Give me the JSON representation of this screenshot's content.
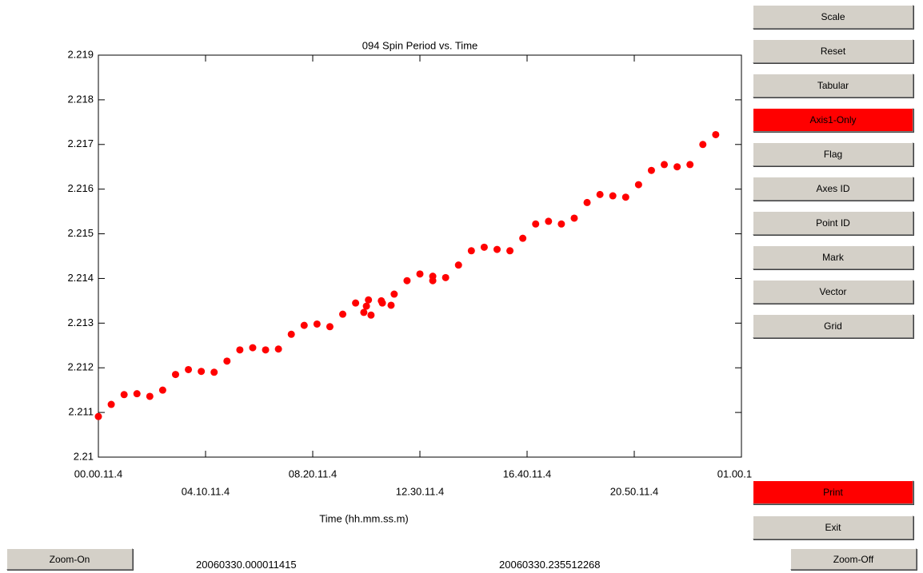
{
  "chart_data": {
    "type": "scatter",
    "title": "094 Spin Period vs. Time",
    "x_label": "Time  (hh.mm.ss.m)",
    "color": "#ff0000",
    "xlim": [
      0,
      25
    ],
    "xticks": [
      {
        "value": 0,
        "label": "00.00.11.4"
      },
      {
        "value": 4.1667,
        "label": "04.10.11.4"
      },
      {
        "value": 8.3333,
        "label": "08.20.11.4"
      },
      {
        "value": 12.5,
        "label": "12.30.11.4"
      },
      {
        "value": 16.6667,
        "label": "16.40.11.4"
      },
      {
        "value": 20.8333,
        "label": "20.50.11.4"
      },
      {
        "value": 25,
        "label": "01.00.11.4"
      }
    ],
    "ylim": [
      2.21,
      2.219
    ],
    "yticks": [
      2.21,
      2.211,
      2.212,
      2.213,
      2.214,
      2.215,
      2.216,
      2.217,
      2.218,
      2.219
    ],
    "x": [
      0,
      0.5,
      1,
      1.5,
      2,
      2.5,
      3,
      3.5,
      4,
      4.5,
      5,
      5.5,
      6,
      6.5,
      7,
      7.5,
      8,
      8.5,
      9,
      9.5,
      10,
      10.32,
      10.42,
      10.5,
      10.6,
      11,
      11.04,
      11.38,
      11.5,
      12,
      12.5,
      13,
      13.0,
      13.5,
      14,
      14.5,
      15,
      15.5,
      16,
      16.5,
      17,
      17.5,
      18,
      18.5,
      19,
      19.5,
      20,
      20.5,
      21,
      21.5,
      22,
      22.5,
      23,
      23.5,
      24
    ],
    "values": [
      2.21091,
      2.21118,
      2.2114,
      2.21142,
      2.21136,
      2.2115,
      2.21185,
      2.21196,
      2.21192,
      2.2119,
      2.21215,
      2.2124,
      2.21245,
      2.2124,
      2.21242,
      2.21275,
      2.21295,
      2.21298,
      2.21292,
      2.2132,
      2.21345,
      2.21324,
      2.21338,
      2.21352,
      2.21318,
      2.2135,
      2.21345,
      2.2134,
      2.21365,
      2.21395,
      2.2141,
      2.21405,
      2.21395,
      2.21402,
      2.2143,
      2.21462,
      2.2147,
      2.21465,
      2.21462,
      2.2149,
      2.21522,
      2.21528,
      2.21522,
      2.21535,
      2.2157,
      2.21588,
      2.21585,
      2.21582,
      2.2161,
      2.21642,
      2.21655,
      2.2165,
      2.21655,
      2.217,
      2.21722
    ]
  },
  "range_start": "20060330.000011415",
  "range_end": "20060330.235512268",
  "buttons": [
    {
      "label": "Scale"
    },
    {
      "label": "Reset"
    },
    {
      "label": "Tabular"
    },
    {
      "label": "Axis1-Only",
      "color": "#ff0000"
    },
    {
      "label": "Flag"
    },
    {
      "label": "Axes ID"
    },
    {
      "label": "Point ID"
    },
    {
      "label": "Mark"
    },
    {
      "label": "Vector"
    },
    {
      "label": "Grid"
    }
  ],
  "bottom_buttons": [
    {
      "label": "Print",
      "color": "#ff0000"
    },
    {
      "label": "Exit"
    }
  ],
  "zoom_on": "Zoom-On",
  "zoom_off": "Zoom-Off"
}
